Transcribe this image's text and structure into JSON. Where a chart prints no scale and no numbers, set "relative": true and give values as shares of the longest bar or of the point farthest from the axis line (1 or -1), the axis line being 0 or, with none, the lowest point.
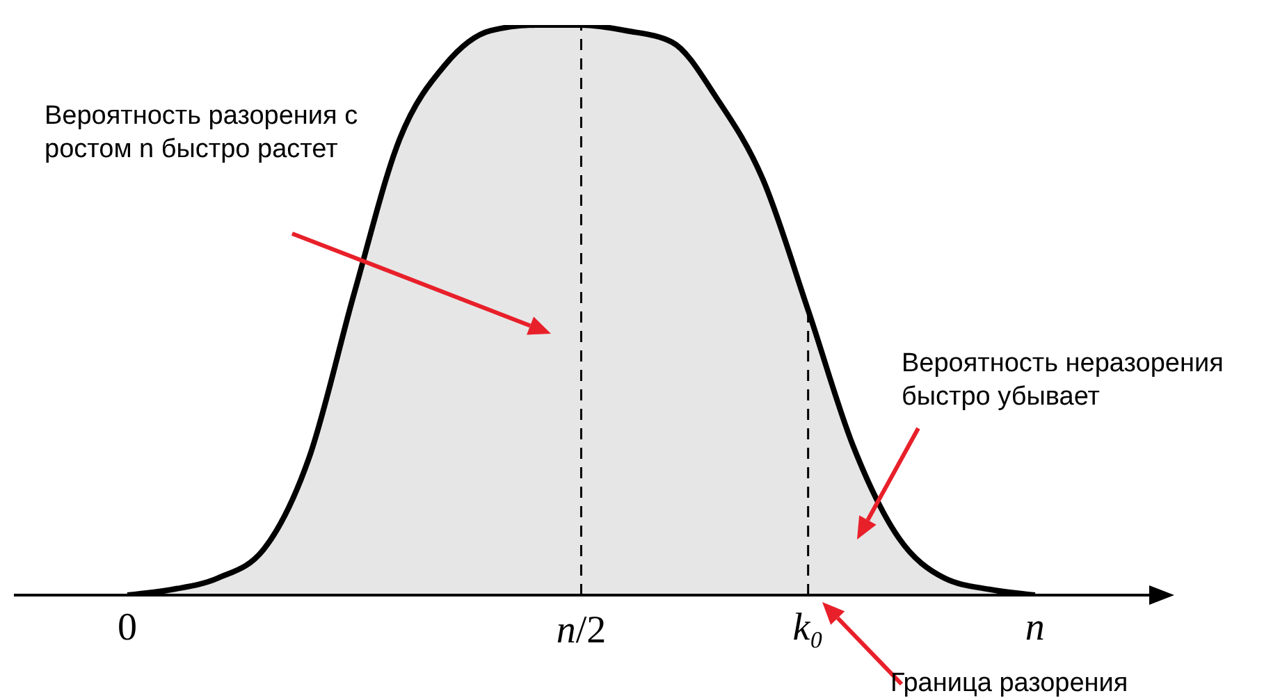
{
  "chart_data": {
    "type": "area",
    "relative": true,
    "categories": [
      "0",
      null,
      null,
      null,
      null,
      null,
      null,
      null,
      null,
      null,
      "n/2",
      null,
      null,
      null,
      null,
      "k₀",
      null,
      null,
      null,
      null,
      "n"
    ],
    "series": [
      {
        "color": "#e6e6e6",
        "values": [
          0,
          0.01,
          0.03,
          0.08,
          0.24,
          0.53,
          0.8,
          0.93,
          0.99,
          1,
          1,
          0.99,
          0.97,
          0.87,
          0.73,
          0.5,
          0.26,
          0.1,
          0.03,
          0.01,
          0
        ]
      }
    ],
    "ref_lines": [
      {
        "axis": "x",
        "value": "n/2",
        "line_style": "dashed",
        "color": "#000000"
      },
      {
        "axis": "x",
        "value": "k₀",
        "line_style": "dashed",
        "color": "#000000"
      }
    ],
    "annotations": [
      "Вероятность разорения с ростом n быстро растет",
      "Вероятность неразорения быстро убывает",
      "Граница разорения"
    ],
    "marker": "none"
  }
}
